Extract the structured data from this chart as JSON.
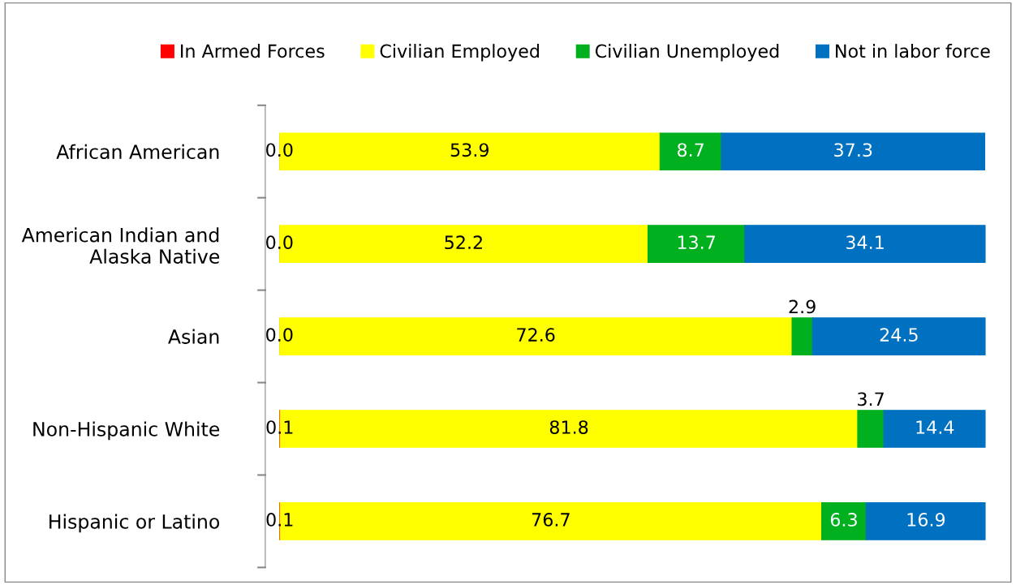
{
  "chart_data": {
    "type": "bar",
    "orientation": "horizontal",
    "stacked": true,
    "legend": "top",
    "grid": false,
    "tick_labels": "y",
    "categories": [
      "African American",
      "American Indian and\nAlaska Native",
      "Asian",
      "Non-Hispanic White",
      "Hispanic or Latino"
    ],
    "series": [
      {
        "name": "In Armed Forces",
        "color": "#ff0000",
        "values": [
          0.0,
          0.0,
          0.0,
          0.1,
          0.1
        ],
        "value_labels": [
          "0.0",
          "0.0",
          "0.0",
          "0.1",
          "0.1"
        ]
      },
      {
        "name": "Civilian Employed",
        "color": "#ffff00",
        "values": [
          53.9,
          52.2,
          72.6,
          81.8,
          76.7
        ],
        "value_labels": [
          "53.9",
          "52.2",
          "72.6",
          "81.8",
          "76.7"
        ]
      },
      {
        "name": "Civilian Unemployed",
        "color": "#00b01e",
        "values": [
          8.7,
          13.7,
          2.9,
          3.7,
          6.3
        ],
        "value_labels": [
          "8.7",
          "13.7",
          "2.9",
          "3.7",
          "6.3"
        ]
      },
      {
        "name": "Not in labor force",
        "color": "#0070c0",
        "values": [
          37.3,
          34.1,
          24.5,
          14.4,
          16.9
        ],
        "value_labels": [
          "37.3",
          "34.1",
          "24.5",
          "14.4",
          "16.9"
        ]
      }
    ]
  }
}
